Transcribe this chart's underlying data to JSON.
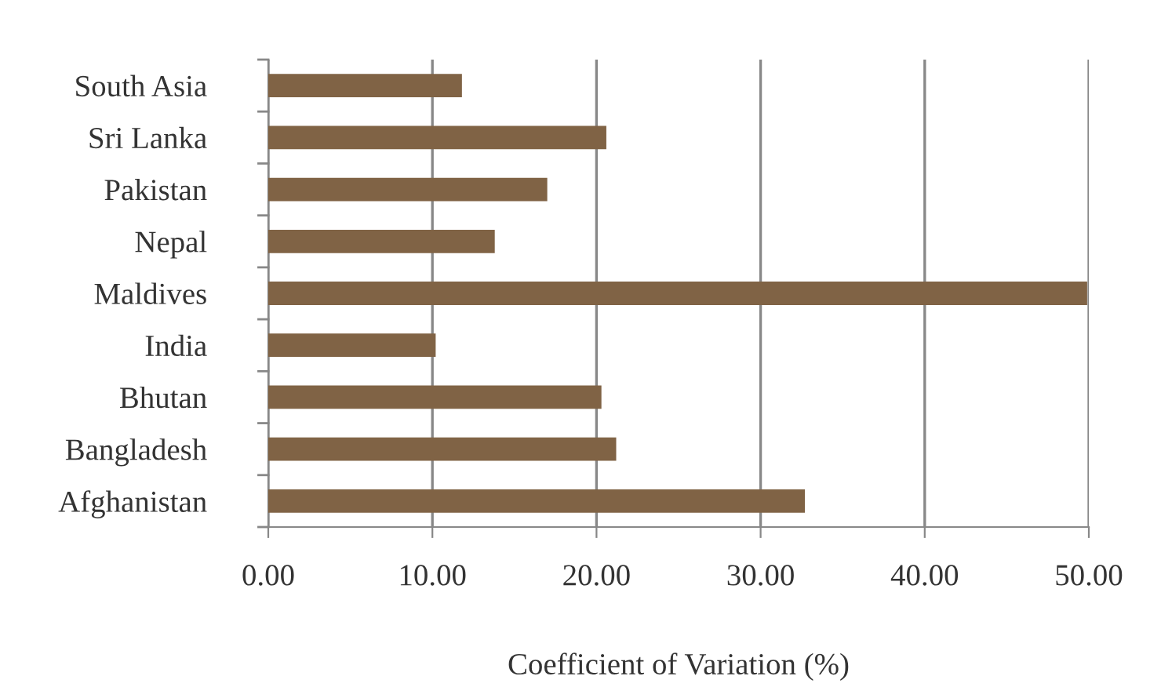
{
  "chart_data": {
    "type": "bar",
    "orientation": "horizontal",
    "xlabel": "Coefficient of Variation (%)",
    "categories": [
      "South Asia",
      "Sri Lanka",
      "Pakistan",
      "Nepal",
      "Maldives",
      "India",
      "Bhutan",
      "Bangladesh",
      "Afghanistan"
    ],
    "values": [
      11.8,
      20.6,
      17.0,
      13.8,
      49.9,
      10.2,
      20.3,
      21.2,
      32.7
    ],
    "color": "#806345",
    "xlim": [
      0,
      50
    ],
    "xticks": [
      {
        "value": 0,
        "label": "0.00"
      },
      {
        "value": 10,
        "label": "10.00"
      },
      {
        "value": 20,
        "label": "20.00"
      },
      {
        "value": 30,
        "label": "30.00"
      },
      {
        "value": 40,
        "label": "40.00"
      },
      {
        "value": 50,
        "label": "50.00"
      }
    ],
    "grid": "x",
    "legend": false
  }
}
